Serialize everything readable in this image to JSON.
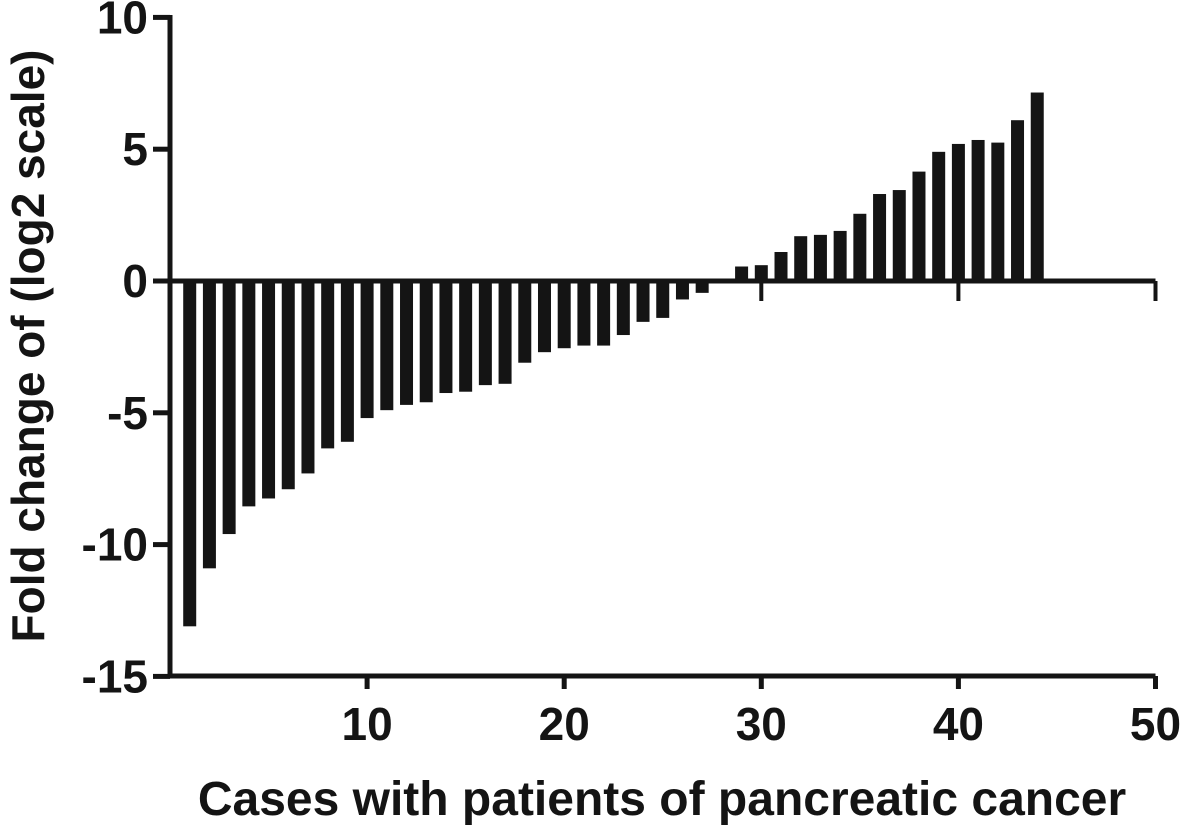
{
  "figure": {
    "background": "#ffffff",
    "ink_color": "#141414"
  },
  "chart_data": {
    "type": "bar",
    "title": "",
    "xlabel": "Cases with patients of pancreatic cancer",
    "ylabel": "Fold change of (log2 scale)",
    "categories": [
      1,
      2,
      3,
      4,
      5,
      6,
      7,
      8,
      9,
      10,
      11,
      12,
      13,
      14,
      15,
      16,
      17,
      18,
      19,
      20,
      21,
      22,
      23,
      24,
      25,
      26,
      27,
      28,
      29,
      30,
      31,
      32,
      33,
      34,
      35,
      36,
      37,
      38,
      39,
      40,
      41,
      42,
      43,
      44
    ],
    "values": [
      -13.1,
      -10.9,
      -9.6,
      -8.55,
      -8.25,
      -7.9,
      -7.3,
      -6.35,
      -6.1,
      -5.2,
      -4.9,
      -4.7,
      -4.6,
      -4.25,
      -4.2,
      -3.95,
      -3.9,
      -3.1,
      -2.7,
      -2.55,
      -2.45,
      -2.45,
      -2.05,
      -1.55,
      -1.4,
      -0.7,
      -0.45,
      0,
      0.55,
      0.6,
      1.1,
      1.7,
      1.75,
      1.9,
      2.55,
      3.3,
      3.45,
      4.15,
      4.9,
      5.2,
      5.35,
      5.25,
      6.1,
      7.15
    ],
    "bar_color": "#141414",
    "baseline": 0,
    "xlim": [
      0,
      50
    ],
    "ylim": [
      -15,
      10
    ],
    "x_ticks": [
      10,
      20,
      30,
      40,
      50
    ],
    "y_ticks": [
      10,
      5,
      0,
      -5,
      -10,
      -15
    ],
    "grid": "off",
    "legend": "none",
    "notes": "sorted waterfall of per-case log2 fold change; zero line carries small downward ticks at x tick positions"
  }
}
